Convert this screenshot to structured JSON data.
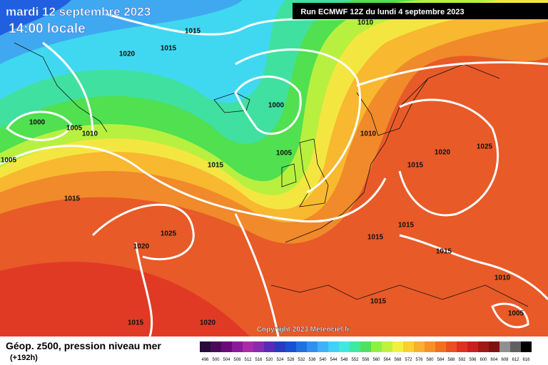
{
  "header": {
    "date": "mardi 12 septembre 2023",
    "time": "14:00 locale",
    "run": "Run ECMWF 12Z du lundi 4 septembre 2023"
  },
  "isobar_labels": [
    "1015",
    "1010",
    "1015",
    "1020",
    "1000",
    "1000",
    "1005",
    "1010",
    "1010",
    "1020",
    "1025",
    "1005",
    "1015",
    "1015",
    "1005",
    "1015",
    "1025",
    "1015",
    "1015",
    "1020",
    "1015",
    "1010",
    "1015",
    "1005",
    "1015",
    "1020"
  ],
  "copyright": "Copyright 2023 Meteociel.fr",
  "footer": {
    "title": "Géop. z500, pression niveau mer",
    "lead": "(+192h)"
  },
  "legend": {
    "levels": [
      496,
      500,
      504,
      508,
      512,
      516,
      520,
      524,
      528,
      532,
      536,
      540,
      544,
      548,
      552,
      556,
      560,
      564,
      568,
      572,
      576,
      580,
      584,
      588,
      592,
      596,
      600,
      604,
      608,
      612,
      616
    ],
    "colors": [
      "#2a0a3a",
      "#4a0a5a",
      "#6a0a7a",
      "#8a1a9a",
      "#aa2aaa",
      "#8a2ab0",
      "#5a2ab8",
      "#2a3ac0",
      "#1a50d0",
      "#2070e0",
      "#3090f0",
      "#40b0f8",
      "#40d0f8",
      "#40e8e0",
      "#40e8a0",
      "#50e060",
      "#90f040",
      "#c0f040",
      "#f0f040",
      "#f8d030",
      "#f8b030",
      "#f89028",
      "#f07020",
      "#e85020",
      "#e03020",
      "#c82020",
      "#a01818",
      "#801010",
      "#909090",
      "#606060",
      "#000000"
    ]
  }
}
